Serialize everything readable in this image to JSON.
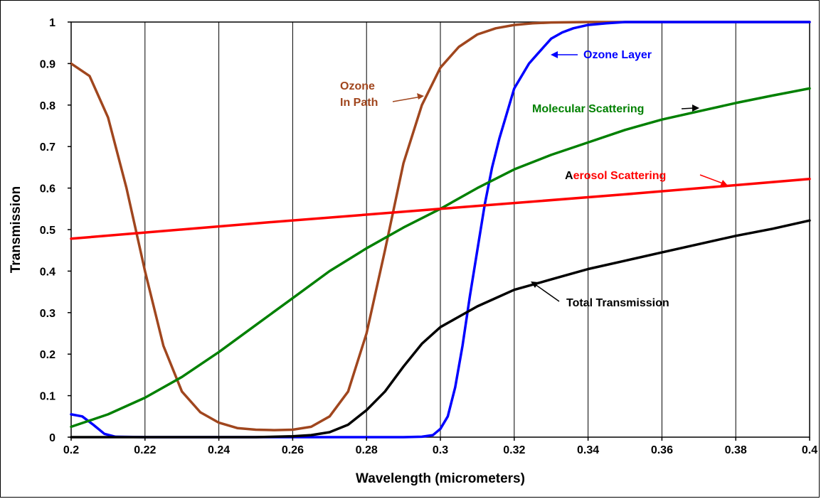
{
  "chart_data": {
    "type": "line",
    "xlabel": "Wavelength (micrometers)",
    "ylabel": "Transmission",
    "xlim": [
      0.2,
      0.4
    ],
    "ylim": [
      0,
      1
    ],
    "grid": "vertical",
    "x_ticks": [
      "0.2",
      "0.22",
      "0.24",
      "0.26",
      "0.28",
      "0.3",
      "0.32",
      "0.34",
      "0.36",
      "0.38",
      "0.4"
    ],
    "y_ticks": [
      "0",
      "0.1",
      "0.2",
      "0.3",
      "0.4",
      "0.5",
      "0.6",
      "0.7",
      "0.8",
      "0.9",
      "1"
    ],
    "series": [
      {
        "name": "Ozone In Path",
        "color": "#a0461e",
        "x": [
          0.2,
          0.205,
          0.21,
          0.215,
          0.22,
          0.225,
          0.23,
          0.235,
          0.24,
          0.245,
          0.25,
          0.255,
          0.26,
          0.265,
          0.27,
          0.275,
          0.28,
          0.285,
          0.29,
          0.295,
          0.3,
          0.305,
          0.31,
          0.315,
          0.32,
          0.325,
          0.33,
          0.34,
          0.35,
          0.4
        ],
        "y": [
          0.9,
          0.87,
          0.77,
          0.6,
          0.4,
          0.22,
          0.11,
          0.06,
          0.035,
          0.022,
          0.018,
          0.017,
          0.018,
          0.025,
          0.05,
          0.11,
          0.25,
          0.45,
          0.66,
          0.8,
          0.89,
          0.94,
          0.97,
          0.985,
          0.993,
          0.997,
          0.999,
          1.0,
          1.0,
          1.0
        ]
      },
      {
        "name": "Ozone Layer",
        "color": "#0000ff",
        "x": [
          0.2,
          0.203,
          0.206,
          0.209,
          0.212,
          0.22,
          0.25,
          0.29,
          0.295,
          0.298,
          0.3,
          0.302,
          0.304,
          0.306,
          0.308,
          0.31,
          0.312,
          0.314,
          0.316,
          0.318,
          0.32,
          0.322,
          0.324,
          0.326,
          0.328,
          0.33,
          0.333,
          0.336,
          0.34,
          0.345,
          0.35,
          0.4
        ],
        "y": [
          0.055,
          0.05,
          0.03,
          0.008,
          0.001,
          0.0,
          0.0,
          0.0,
          0.001,
          0.005,
          0.02,
          0.05,
          0.12,
          0.22,
          0.34,
          0.45,
          0.56,
          0.65,
          0.72,
          0.78,
          0.84,
          0.87,
          0.9,
          0.92,
          0.94,
          0.96,
          0.975,
          0.985,
          0.993,
          0.997,
          1.0,
          1.0
        ]
      },
      {
        "name": "Molecular Scattering",
        "color": "#008000",
        "x": [
          0.2,
          0.21,
          0.22,
          0.23,
          0.24,
          0.25,
          0.26,
          0.27,
          0.28,
          0.29,
          0.3,
          0.31,
          0.32,
          0.33,
          0.34,
          0.35,
          0.36,
          0.37,
          0.38,
          0.39,
          0.4
        ],
        "y": [
          0.025,
          0.055,
          0.095,
          0.145,
          0.205,
          0.27,
          0.335,
          0.4,
          0.455,
          0.505,
          0.55,
          0.6,
          0.645,
          0.68,
          0.71,
          0.74,
          0.765,
          0.785,
          0.805,
          0.823,
          0.84
        ]
      },
      {
        "name": "Aerosol Scattering",
        "color": "#ff0000",
        "x": [
          0.2,
          0.25,
          0.3,
          0.35,
          0.4
        ],
        "y": [
          0.478,
          0.515,
          0.55,
          0.585,
          0.622
        ]
      },
      {
        "name": "Total Transmission",
        "color": "#000000",
        "x": [
          0.2,
          0.25,
          0.26,
          0.265,
          0.27,
          0.275,
          0.28,
          0.285,
          0.29,
          0.295,
          0.3,
          0.305,
          0.31,
          0.315,
          0.32,
          0.33,
          0.34,
          0.35,
          0.36,
          0.37,
          0.38,
          0.39,
          0.4
        ],
        "y": [
          0.0,
          0.0,
          0.002,
          0.005,
          0.012,
          0.03,
          0.065,
          0.11,
          0.17,
          0.225,
          0.265,
          0.29,
          0.315,
          0.335,
          0.355,
          0.38,
          0.405,
          0.425,
          0.445,
          0.465,
          0.485,
          0.502,
          0.522
        ]
      }
    ],
    "annotations": [
      {
        "text_line1": "Ozone",
        "text_line2": "In Path",
        "color": "#a0461e"
      },
      {
        "text": "Ozone Layer",
        "color": "#0000ff"
      },
      {
        "text": "Molecular Scattering",
        "color": "#008000"
      },
      {
        "text_first": "A",
        "text_rest": "erosol Scattering",
        "color": "#ff0000"
      },
      {
        "text": "Total Transmission",
        "color": "#000000"
      }
    ]
  }
}
